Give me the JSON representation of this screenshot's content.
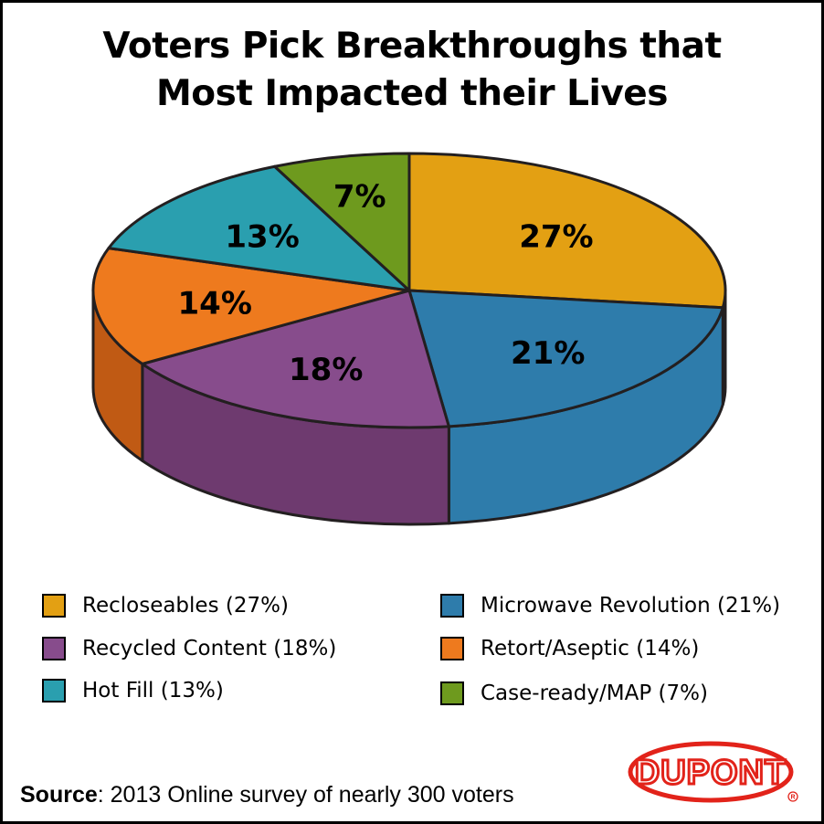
{
  "chart_data": {
    "type": "pie",
    "title": "Voters Pick Breakthroughs that Most Impacted their Lives",
    "title_lines": [
      "Voters Pick Breakthroughs that",
      "Most Impacted their Lives"
    ],
    "slices": [
      {
        "name": "Recloseables",
        "value": 27,
        "label": "27%",
        "legend": "Recloseables (27%)",
        "color": "#E3A013",
        "side": "#C98C0E"
      },
      {
        "name": "Microwave Revolution",
        "value": 21,
        "label": "21%",
        "legend": "Microwave Revolution (21%)",
        "color": "#2E7CAB",
        "side": "#2E7CAB"
      },
      {
        "name": "Recycled Content",
        "value": 18,
        "label": "18%",
        "legend": "Recycled Content (18%)",
        "color": "#874C8C",
        "side": "#6E3A6F"
      },
      {
        "name": "Retort/Aseptic",
        "value": 14,
        "label": "14%",
        "legend": "Retort/Aseptic (14%)",
        "color": "#EE7A1E",
        "side": "#C05A14"
      },
      {
        "name": "Hot Fill",
        "value": 13,
        "label": "13%",
        "legend": "Hot Fill (13%)",
        "color": "#2A9FAF",
        "side": "#22808D"
      },
      {
        "name": "Case-ready/MAP",
        "value": 7,
        "label": "7%",
        "legend": "Case-ready/MAP (7%)",
        "color": "#6E9A1E",
        "side": "#55781A"
      }
    ],
    "legend_order": [
      0,
      1,
      2,
      3,
      4,
      5
    ],
    "source_label": "Source",
    "source_text": ": 2013  Online survey of nearly 300 voters"
  },
  "logo": {
    "text": "DUPONT",
    "color": "#E2231A"
  }
}
